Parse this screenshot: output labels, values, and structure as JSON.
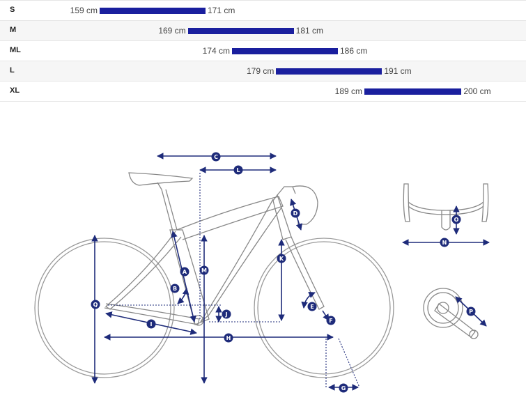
{
  "rider_height_table": {
    "bar_color": "#1a1f9e",
    "scale_range_cm": [
      150,
      205
    ],
    "rows": [
      {
        "size": "S",
        "min": 159,
        "max": 171,
        "min_label": "159 cm",
        "max_label": "171 cm"
      },
      {
        "size": "M",
        "min": 169,
        "max": 181,
        "min_label": "169 cm",
        "max_label": "181 cm"
      },
      {
        "size": "ML",
        "min": 174,
        "max": 186,
        "min_label": "174 cm",
        "max_label": "186 cm"
      },
      {
        "size": "L",
        "min": 179,
        "max": 191,
        "min_label": "179 cm",
        "max_label": "191 cm"
      },
      {
        "size": "XL",
        "min": 189,
        "max": 200,
        "min_label": "189 cm",
        "max_label": "200 cm"
      }
    ]
  },
  "geometry_diagram": {
    "accent_color": "#1e2b7a",
    "labels": {
      "A": "A",
      "B": "B",
      "C": "C",
      "D": "D",
      "E": "E",
      "F": "F",
      "G": "G",
      "H": "H",
      "I": "I",
      "J": "J",
      "K": "K",
      "L": "L",
      "M": "M",
      "N": "N",
      "O": "O",
      "P": "P",
      "Q": "Q"
    }
  }
}
